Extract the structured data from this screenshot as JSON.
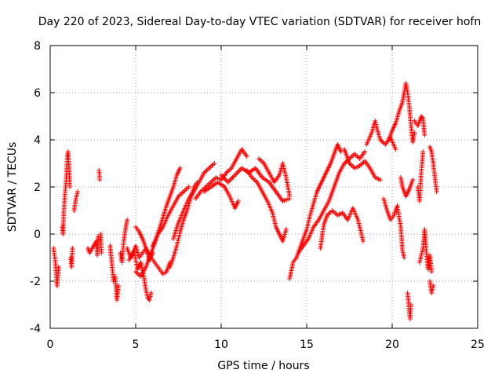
{
  "chart_data": {
    "type": "scatter",
    "title": "Day 220 of 2023, Sidereal Day-to-day VTEC variation (SDTVAR) for receiver hofn",
    "xlabel": "GPS time / hours",
    "ylabel": "SDTVAR / TECUs",
    "xlim": [
      0,
      25
    ],
    "ylim": [
      -4,
      8
    ],
    "xticks": [
      0,
      5,
      10,
      15,
      20,
      25
    ],
    "yticks": [
      -4,
      -2,
      0,
      2,
      4,
      6,
      8
    ],
    "grid": true,
    "marker": "+",
    "color": "#ff0000",
    "series": [
      {
        "name": "SDTVAR",
        "points": [
          [
            0.2,
            -0.6
          ],
          [
            0.3,
            -1.2
          ],
          [
            0.35,
            -1.7
          ],
          [
            0.4,
            -2.2
          ],
          [
            0.5,
            -1.4
          ],
          [
            0.7,
            0.3
          ],
          [
            0.75,
            0.0
          ],
          [
            0.8,
            1.0
          ],
          [
            0.85,
            1.6
          ],
          [
            0.9,
            2.0
          ],
          [
            0.95,
            2.5
          ],
          [
            1.0,
            3.3
          ],
          [
            1.05,
            3.5
          ],
          [
            1.1,
            2.8
          ],
          [
            1.15,
            2.0
          ],
          [
            1.2,
            -1.0
          ],
          [
            1.25,
            -1.4
          ],
          [
            1.3,
            -0.6
          ],
          [
            1.4,
            1.0
          ],
          [
            1.5,
            1.5
          ],
          [
            1.6,
            1.8
          ],
          [
            2.2,
            -0.6
          ],
          [
            2.3,
            -0.8
          ],
          [
            2.7,
            -0.3
          ],
          [
            2.75,
            -0.9
          ],
          [
            2.8,
            -0.1
          ],
          [
            2.85,
            2.7
          ],
          [
            2.9,
            2.3
          ],
          [
            2.95,
            0.0
          ],
          [
            3.0,
            -0.8
          ],
          [
            3.5,
            -0.5
          ],
          [
            3.6,
            -1.2
          ],
          [
            3.7,
            -2.0
          ],
          [
            3.8,
            -1.8
          ],
          [
            3.9,
            -2.8
          ],
          [
            4.0,
            -2.2
          ],
          [
            4.1,
            -0.8
          ],
          [
            4.2,
            -1.2
          ],
          [
            4.3,
            -0.3
          ],
          [
            4.4,
            0.2
          ],
          [
            4.5,
            0.6
          ],
          [
            4.5,
            -0.6
          ],
          [
            4.7,
            -1.0
          ],
          [
            4.9,
            -0.7
          ],
          [
            5.1,
            -1.5
          ],
          [
            5.3,
            -1.2
          ],
          [
            5.5,
            -1.9
          ],
          [
            5.6,
            -2.4
          ],
          [
            5.7,
            -2.7
          ],
          [
            5.8,
            -2.8
          ],
          [
            5.9,
            -2.5
          ],
          [
            4.6,
            -1.1
          ],
          [
            4.8,
            -0.9
          ],
          [
            5.0,
            -0.5
          ],
          [
            5.2,
            -1.0
          ],
          [
            5.4,
            -0.8
          ],
          [
            5.6,
            -0.6
          ],
          [
            5.8,
            -1.1
          ],
          [
            6.0,
            -0.8
          ],
          [
            5.0,
            0.3
          ],
          [
            5.2,
            0.1
          ],
          [
            5.4,
            -0.2
          ],
          [
            5.6,
            -0.6
          ],
          [
            5.8,
            -0.9
          ],
          [
            6.0,
            -1.1
          ],
          [
            6.2,
            -1.3
          ],
          [
            6.4,
            -1.5
          ],
          [
            6.6,
            -1.7
          ],
          [
            6.8,
            -1.6
          ],
          [
            7.0,
            -1.2
          ],
          [
            5.0,
            -1.6
          ],
          [
            5.3,
            -1.8
          ],
          [
            5.6,
            -1.4
          ],
          [
            5.9,
            -0.8
          ],
          [
            6.2,
            -0.2
          ],
          [
            6.5,
            0.5
          ],
          [
            6.8,
            1.2
          ],
          [
            7.0,
            1.6
          ],
          [
            7.2,
            2.0
          ],
          [
            7.4,
            2.5
          ],
          [
            7.6,
            2.8
          ],
          [
            6.0,
            -0.5
          ],
          [
            6.3,
            0.0
          ],
          [
            6.6,
            0.3
          ],
          [
            6.9,
            0.8
          ],
          [
            7.2,
            1.2
          ],
          [
            7.5,
            1.6
          ],
          [
            7.8,
            1.8
          ],
          [
            8.1,
            2.0
          ],
          [
            7.0,
            -1.4
          ],
          [
            7.2,
            -1.0
          ],
          [
            7.4,
            -0.5
          ],
          [
            7.6,
            0.1
          ],
          [
            7.8,
            0.6
          ],
          [
            8.0,
            1.0
          ],
          [
            8.2,
            1.5
          ],
          [
            8.4,
            2.0
          ],
          [
            8.6,
            2.2
          ],
          [
            7.2,
            -0.2
          ],
          [
            7.5,
            0.5
          ],
          [
            7.8,
            1.0
          ],
          [
            8.1,
            1.5
          ],
          [
            8.4,
            1.8
          ],
          [
            8.7,
            2.2
          ],
          [
            9.0,
            2.6
          ],
          [
            9.3,
            2.8
          ],
          [
            9.6,
            3.0
          ],
          [
            8.5,
            1.5
          ],
          [
            8.8,
            1.8
          ],
          [
            9.1,
            2.0
          ],
          [
            9.4,
            2.2
          ],
          [
            9.7,
            2.4
          ],
          [
            10.0,
            2.3
          ],
          [
            10.3,
            2.6
          ],
          [
            10.6,
            2.8
          ],
          [
            10.9,
            3.2
          ],
          [
            11.2,
            3.6
          ],
          [
            11.5,
            3.3
          ],
          [
            9.0,
            1.8
          ],
          [
            9.4,
            2.0
          ],
          [
            9.8,
            2.2
          ],
          [
            10.2,
            2.0
          ],
          [
            10.5,
            1.6
          ],
          [
            10.8,
            1.1
          ],
          [
            11.0,
            1.4
          ],
          [
            10.0,
            2.5
          ],
          [
            10.4,
            2.2
          ],
          [
            10.8,
            2.5
          ],
          [
            11.2,
            2.8
          ],
          [
            11.6,
            2.6
          ],
          [
            12.0,
            2.8
          ],
          [
            12.4,
            2.4
          ],
          [
            12.8,
            2.2
          ],
          [
            13.2,
            1.8
          ],
          [
            13.6,
            1.4
          ],
          [
            14.0,
            1.5
          ],
          [
            11.5,
            2.7
          ],
          [
            11.8,
            2.4
          ],
          [
            12.1,
            2.2
          ],
          [
            12.4,
            1.8
          ],
          [
            12.7,
            1.4
          ],
          [
            13.0,
            0.9
          ],
          [
            13.2,
            0.3
          ],
          [
            13.4,
            0.0
          ],
          [
            13.6,
            -0.3
          ],
          [
            13.8,
            0.2
          ],
          [
            12.2,
            3.2
          ],
          [
            12.5,
            3.0
          ],
          [
            12.8,
            2.6
          ],
          [
            13.1,
            2.2
          ],
          [
            13.4,
            2.5
          ],
          [
            13.6,
            3.0
          ],
          [
            13.8,
            2.4
          ],
          [
            14.0,
            1.6
          ],
          [
            14.0,
            -1.9
          ],
          [
            14.2,
            -1.2
          ],
          [
            14.4,
            -1.0
          ],
          [
            14.6,
            -0.6
          ],
          [
            14.8,
            -0.2
          ],
          [
            15.0,
            0.2
          ],
          [
            15.2,
            0.8
          ],
          [
            15.4,
            1.3
          ],
          [
            15.6,
            1.8
          ],
          [
            15.8,
            2.1
          ],
          [
            16.0,
            2.4
          ],
          [
            16.2,
            2.7
          ],
          [
            16.4,
            3.0
          ],
          [
            16.6,
            3.4
          ],
          [
            16.8,
            3.8
          ],
          [
            17.0,
            3.5
          ],
          [
            14.5,
            -0.8
          ],
          [
            14.8,
            -0.5
          ],
          [
            15.1,
            -0.2
          ],
          [
            15.4,
            0.3
          ],
          [
            15.7,
            0.6
          ],
          [
            16.0,
            1.0
          ],
          [
            16.3,
            1.4
          ],
          [
            16.6,
            2.0
          ],
          [
            16.9,
            2.6
          ],
          [
            17.2,
            3.0
          ],
          [
            17.5,
            3.2
          ],
          [
            17.8,
            3.4
          ],
          [
            18.1,
            3.2
          ],
          [
            18.4,
            3.5
          ],
          [
            15.8,
            -0.6
          ],
          [
            16.0,
            0.4
          ],
          [
            16.2,
            0.8
          ],
          [
            16.5,
            1.0
          ],
          [
            16.8,
            0.8
          ],
          [
            17.1,
            0.9
          ],
          [
            17.4,
            0.6
          ],
          [
            17.7,
            1.1
          ],
          [
            18.0,
            0.6
          ],
          [
            18.2,
            0.0
          ],
          [
            18.3,
            -0.3
          ],
          [
            17.2,
            3.6
          ],
          [
            17.5,
            3.0
          ],
          [
            17.8,
            2.8
          ],
          [
            18.1,
            2.9
          ],
          [
            18.4,
            3.1
          ],
          [
            18.7,
            2.8
          ],
          [
            19.0,
            2.4
          ],
          [
            19.3,
            2.3
          ],
          [
            18.5,
            3.8
          ],
          [
            18.8,
            4.3
          ],
          [
            19.0,
            4.8
          ],
          [
            19.1,
            4.5
          ],
          [
            19.3,
            4.0
          ],
          [
            19.6,
            3.8
          ],
          [
            19.9,
            4.1
          ],
          [
            20.2,
            3.6
          ],
          [
            19.5,
            1.5
          ],
          [
            19.7,
            1.0
          ],
          [
            19.9,
            0.6
          ],
          [
            20.1,
            0.8
          ],
          [
            20.3,
            1.2
          ],
          [
            20.5,
            0.3
          ],
          [
            20.6,
            -0.7
          ],
          [
            20.7,
            -1.0
          ],
          [
            19.8,
            4.0
          ],
          [
            20.0,
            4.4
          ],
          [
            20.2,
            4.7
          ],
          [
            20.4,
            5.2
          ],
          [
            20.6,
            5.6
          ],
          [
            20.7,
            6.0
          ],
          [
            20.8,
            6.4
          ],
          [
            20.9,
            6.0
          ],
          [
            21.0,
            5.4
          ],
          [
            21.1,
            4.6
          ],
          [
            21.2,
            3.9
          ],
          [
            21.3,
            4.3
          ],
          [
            20.5,
            2.4
          ],
          [
            20.6,
            2.0
          ],
          [
            20.8,
            1.6
          ],
          [
            21.0,
            1.9
          ],
          [
            21.2,
            2.3
          ],
          [
            20.9,
            -2.5
          ],
          [
            21.0,
            -3.3
          ],
          [
            21.05,
            -3.6
          ],
          [
            21.1,
            -3.0
          ],
          [
            21.3,
            4.8
          ],
          [
            21.5,
            4.6
          ],
          [
            21.7,
            5.0
          ],
          [
            21.8,
            4.9
          ],
          [
            21.9,
            4.2
          ],
          [
            21.5,
            2.0
          ],
          [
            21.6,
            1.4
          ],
          [
            21.7,
            2.6
          ],
          [
            21.8,
            3.5
          ],
          [
            21.6,
            -1.2
          ],
          [
            21.8,
            -0.6
          ],
          [
            21.9,
            0.2
          ],
          [
            22.0,
            -0.8
          ],
          [
            22.1,
            -1.5
          ],
          [
            22.2,
            -0.9
          ],
          [
            22.3,
            -1.6
          ],
          [
            22.2,
            -2.0
          ],
          [
            22.3,
            -2.5
          ],
          [
            22.4,
            -2.2
          ],
          [
            22.2,
            3.7
          ],
          [
            22.3,
            3.5
          ],
          [
            22.4,
            3.0
          ],
          [
            22.5,
            2.4
          ],
          [
            22.6,
            1.8
          ]
        ]
      }
    ]
  }
}
